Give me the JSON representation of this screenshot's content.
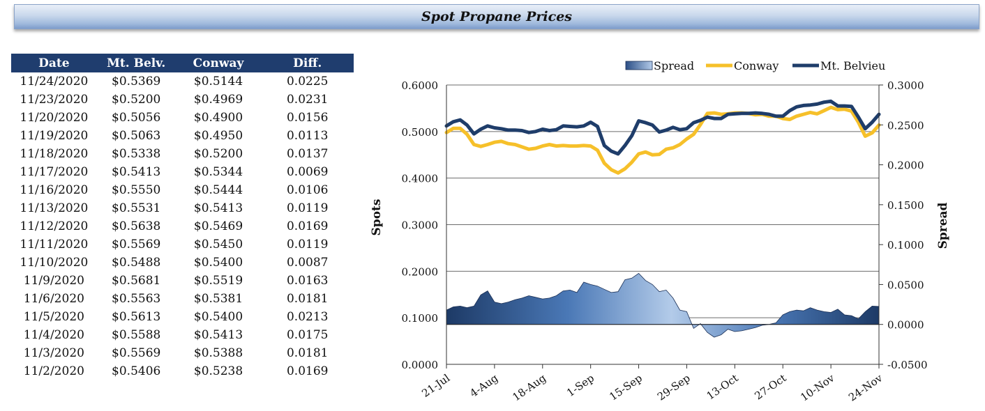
{
  "page_title": "Spot Propane Prices",
  "table": {
    "columns": [
      "Date",
      "Mt. Belv.",
      "Conway",
      "Diff."
    ],
    "rows": [
      [
        "11/24/2020",
        "$0.5369",
        "$0.5144",
        "0.0225"
      ],
      [
        "11/23/2020",
        "$0.5200",
        "$0.4969",
        "0.0231"
      ],
      [
        "11/20/2020",
        "$0.5056",
        "$0.4900",
        "0.0156"
      ],
      [
        "11/19/2020",
        "$0.5063",
        "$0.4950",
        "0.0113"
      ],
      [
        "11/18/2020",
        "$0.5338",
        "$0.5200",
        "0.0137"
      ],
      [
        "11/17/2020",
        "$0.5413",
        "$0.5344",
        "0.0069"
      ],
      [
        "11/16/2020",
        "$0.5550",
        "$0.5444",
        "0.0106"
      ],
      [
        "11/13/2020",
        "$0.5531",
        "$0.5413",
        "0.0119"
      ],
      [
        "11/12/2020",
        "$0.5638",
        "$0.5469",
        "0.0169"
      ],
      [
        "11/11/2020",
        "$0.5569",
        "$0.5450",
        "0.0119"
      ],
      [
        "11/10/2020",
        "$0.5488",
        "$0.5400",
        "0.0087"
      ],
      [
        "11/9/2020",
        "$0.5681",
        "$0.5519",
        "0.0163"
      ],
      [
        "11/6/2020",
        "$0.5563",
        "$0.5381",
        "0.0181"
      ],
      [
        "11/5/2020",
        "$0.5613",
        "$0.5400",
        "0.0213"
      ],
      [
        "11/4/2020",
        "$0.5588",
        "$0.5413",
        "0.0175"
      ],
      [
        "11/3/2020",
        "$0.5569",
        "$0.5388",
        "0.0181"
      ],
      [
        "11/2/2020",
        "$0.5406",
        "$0.5238",
        "0.0169"
      ]
    ]
  },
  "chart_data": {
    "type": "line",
    "ylabel": "Spots",
    "y2label": "Spread",
    "ylim": [
      0.0,
      0.6
    ],
    "y2lim": [
      -0.05,
      0.3
    ],
    "yticks": [
      "0.0000",
      "0.1000",
      "0.2000",
      "0.3000",
      "0.4000",
      "0.5000",
      "0.6000"
    ],
    "y2ticks": [
      "-0.0500",
      "0.0000",
      "0.0500",
      "0.1000",
      "0.1500",
      "0.2000",
      "0.2500",
      "0.3000"
    ],
    "xlim": [
      "2020-07-21",
      "2020-11-24"
    ],
    "xticks": [
      "21-Jul",
      "4-Aug",
      "18-Aug",
      "1-Sep",
      "15-Sep",
      "29-Sep",
      "13-Oct",
      "27-Oct",
      "10-Nov",
      "24-Nov"
    ],
    "xtick_dates": [
      "2020-07-21",
      "2020-08-04",
      "2020-08-18",
      "2020-09-01",
      "2020-09-15",
      "2020-09-29",
      "2020-10-13",
      "2020-10-27",
      "2020-11-10",
      "2020-11-24"
    ],
    "grid": "horizontal",
    "legend_position": "top-right",
    "x": [
      "2020-07-21",
      "2020-07-23",
      "2020-07-25",
      "2020-07-27",
      "2020-07-29",
      "2020-07-31",
      "2020-08-02",
      "2020-08-04",
      "2020-08-06",
      "2020-08-08",
      "2020-08-10",
      "2020-08-12",
      "2020-08-14",
      "2020-08-16",
      "2020-08-18",
      "2020-08-20",
      "2020-08-22",
      "2020-08-24",
      "2020-08-26",
      "2020-08-28",
      "2020-08-30",
      "2020-09-01",
      "2020-09-03",
      "2020-09-05",
      "2020-09-07",
      "2020-09-09",
      "2020-09-11",
      "2020-09-13",
      "2020-09-15",
      "2020-09-17",
      "2020-09-19",
      "2020-09-21",
      "2020-09-23",
      "2020-09-25",
      "2020-09-27",
      "2020-09-29",
      "2020-10-01",
      "2020-10-03",
      "2020-10-05",
      "2020-10-07",
      "2020-10-09",
      "2020-10-11",
      "2020-10-13",
      "2020-10-15",
      "2020-10-17",
      "2020-10-19",
      "2020-10-21",
      "2020-10-23",
      "2020-10-25",
      "2020-10-27",
      "2020-10-29",
      "2020-10-31",
      "2020-11-02",
      "2020-11-04",
      "2020-11-06",
      "2020-11-08",
      "2020-11-10",
      "2020-11-12",
      "2020-11-14",
      "2020-11-16",
      "2020-11-18",
      "2020-11-20",
      "2020-11-22",
      "2020-11-24"
    ],
    "series": [
      {
        "name": "Spread",
        "axis": "secondary",
        "style": "area",
        "color": "#2c4f86",
        "values": [
          0.018,
          0.022,
          0.023,
          0.021,
          0.023,
          0.037,
          0.042,
          0.028,
          0.026,
          0.028,
          0.031,
          0.033,
          0.036,
          0.034,
          0.032,
          0.033,
          0.036,
          0.042,
          0.043,
          0.04,
          0.053,
          0.05,
          0.048,
          0.044,
          0.04,
          0.041,
          0.056,
          0.058,
          0.064,
          0.055,
          0.05,
          0.041,
          0.043,
          0.033,
          0.018,
          0.016,
          -0.005,
          0.001,
          -0.01,
          -0.016,
          -0.013,
          -0.006,
          -0.009,
          -0.008,
          -0.006,
          -0.004,
          -0.001,
          0.0,
          0.002,
          0.012,
          0.016,
          0.018,
          0.017,
          0.021,
          0.018,
          0.016,
          0.015,
          0.019,
          0.012,
          0.011,
          0.007,
          0.016,
          0.023,
          0.0225
        ]
      },
      {
        "name": "Conway",
        "axis": "primary",
        "style": "line",
        "color": "#f6c02a",
        "values": [
          0.498,
          0.507,
          0.507,
          0.494,
          0.472,
          0.468,
          0.472,
          0.477,
          0.479,
          0.474,
          0.472,
          0.467,
          0.462,
          0.464,
          0.469,
          0.472,
          0.469,
          0.47,
          0.469,
          0.469,
          0.47,
          0.469,
          0.46,
          0.432,
          0.418,
          0.411,
          0.42,
          0.434,
          0.452,
          0.456,
          0.45,
          0.451,
          0.462,
          0.465,
          0.472,
          0.484,
          0.494,
          0.515,
          0.539,
          0.54,
          0.537,
          0.538,
          0.54,
          0.54,
          0.539,
          0.536,
          0.537,
          0.533,
          0.533,
          0.528,
          0.526,
          0.533,
          0.537,
          0.541,
          0.538,
          0.545,
          0.552,
          0.547,
          0.548,
          0.544,
          0.52,
          0.49,
          0.497,
          0.514
        ]
      },
      {
        "name": "Mt. Belvieu",
        "axis": "primary",
        "style": "line",
        "color": "#1f3d6a",
        "values": [
          0.512,
          0.521,
          0.525,
          0.514,
          0.495,
          0.505,
          0.512,
          0.508,
          0.506,
          0.503,
          0.503,
          0.502,
          0.498,
          0.5,
          0.505,
          0.502,
          0.504,
          0.512,
          0.511,
          0.51,
          0.512,
          0.52,
          0.511,
          0.47,
          0.458,
          0.452,
          0.47,
          0.491,
          0.523,
          0.519,
          0.514,
          0.499,
          0.503,
          0.509,
          0.504,
          0.506,
          0.519,
          0.524,
          0.531,
          0.528,
          0.528,
          0.537,
          0.538,
          0.539,
          0.539,
          0.54,
          0.539,
          0.537,
          0.533,
          0.533,
          0.545,
          0.553,
          0.556,
          0.557,
          0.559,
          0.563,
          0.565,
          0.555,
          0.555,
          0.554,
          0.531,
          0.506,
          0.52,
          0.537
        ]
      }
    ]
  }
}
